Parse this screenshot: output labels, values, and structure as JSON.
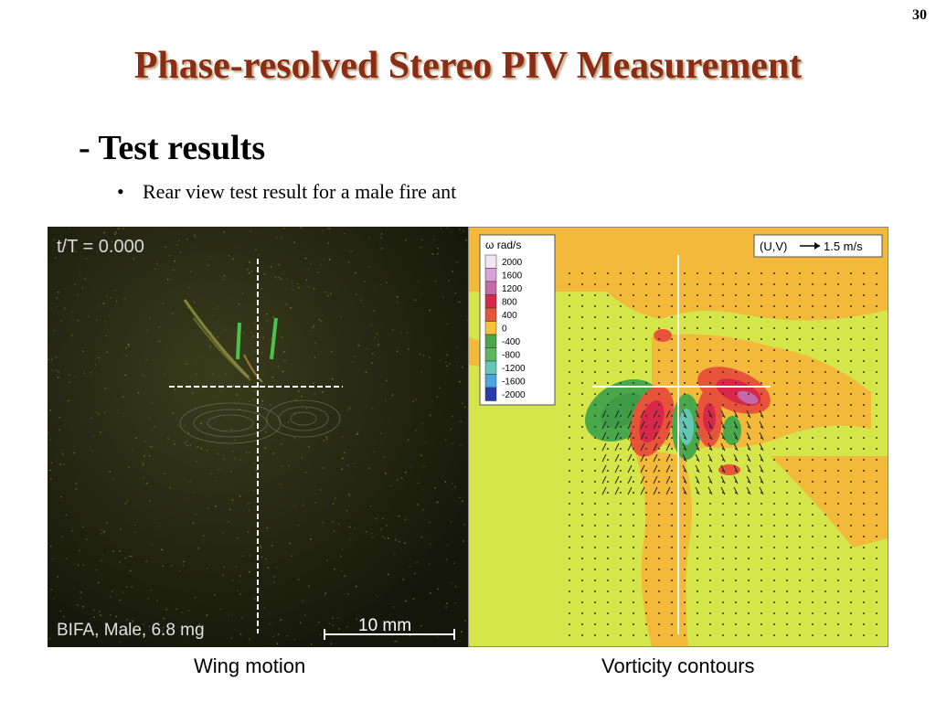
{
  "slide_number": "30",
  "title": "Phase-resolved Stereo PIV Measurement",
  "subtitle": "- Test results",
  "bullet": {
    "symbol": "•",
    "text": "Rear view test result for a male fire ant"
  },
  "left_panel": {
    "phase_label": "t/T = 0.000",
    "specimen_label": "BIFA, Male, 6.8 mg",
    "scale_label": "10 mm",
    "caption": "Wing motion"
  },
  "right_panel": {
    "legend_title": "ω  rad/s",
    "legend_levels": [
      "2000",
      "1600",
      "1200",
      "800",
      "400",
      "0",
      "-400",
      "-800",
      "-1200",
      "-1600",
      "-2000"
    ],
    "legend_colors": [
      "#f2e6f2",
      "#d8a2d8",
      "#c46aa8",
      "#d8284a",
      "#e8543a",
      "#f5c23a",
      "#49a84a",
      "#5cb85c",
      "#62c8b4",
      "#4aa6e0",
      "#2a3ca8"
    ],
    "vector_ref_label": "(U,V)",
    "vector_ref_value": "1.5 m/s",
    "caption": "Vorticity contours"
  }
}
